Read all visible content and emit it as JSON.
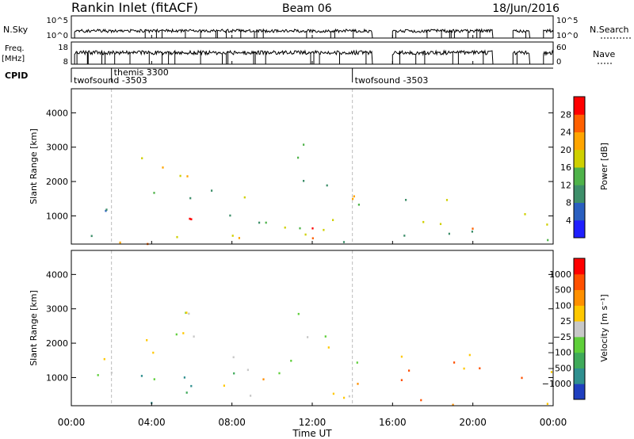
{
  "header": {
    "site": "Rankin Inlet (fitACF)",
    "beam": "Beam 06",
    "date": "18/Jun/2016"
  },
  "top_panels": {
    "nsky_label": "N.Sky",
    "nsky_ticks": [
      "10^5",
      "10^0"
    ],
    "nsearch_label": "N.Search",
    "nsearch_ticks": [
      "10^5",
      "10^0"
    ],
    "freq_label": "Freq.",
    "freq_unit": "[MHz]",
    "freq_ticks": [
      "18",
      "8"
    ],
    "nave_label": "Nave",
    "nave_ticks": [
      "60",
      "0"
    ],
    "cpid_label": "CPID",
    "cpid_entries": [
      {
        "name": "twofsound",
        "id": "-3503",
        "start_hour": 0
      },
      {
        "name": "themis",
        "id": "3300",
        "start_hour": 2
      },
      {
        "name": "twofsound",
        "id": "-3503",
        "start_hour": 14
      }
    ],
    "data_gaps_hours": [
      [
        15.0,
        16.0
      ],
      [
        21.0,
        22.0
      ],
      [
        22.8,
        23.5
      ]
    ]
  },
  "chart_data": [
    {
      "type": "heatmap",
      "name": "power",
      "xlabel": "",
      "ylabel": "Slant Range [km]",
      "xlim": [
        0,
        24
      ],
      "ylim": [
        180,
        4700
      ],
      "yticks": [
        "1000",
        "2000",
        "3000",
        "4000"
      ],
      "colorbar": {
        "label": "Power [dB]",
        "ticks": [
          "4",
          "8",
          "12",
          "16",
          "20",
          "24",
          "28"
        ],
        "colors": [
          "#1f1fff",
          "#2a5fc0",
          "#3e8f6a",
          "#4fb34a",
          "#cfd000",
          "#ffa500",
          "#ff6000",
          "#ff0000"
        ]
      },
      "regions": [
        {
          "t0": 0.4,
          "t1": 2.6,
          "r0": 180,
          "r1": 1600,
          "level": 2
        },
        {
          "t0": 0.8,
          "t1": 2.4,
          "r0": 200,
          "r1": 700,
          "level": 6
        },
        {
          "t0": 2.6,
          "t1": 5.6,
          "r0": 200,
          "r1": 900,
          "level": 5
        },
        {
          "t0": 4.8,
          "t1": 7.0,
          "r0": 500,
          "r1": 1300,
          "level": 7
        },
        {
          "t0": 2.6,
          "t1": 7.2,
          "r0": 1500,
          "r1": 2100,
          "level": 3
        },
        {
          "t0": 2.6,
          "t1": 4.2,
          "r0": 2000,
          "r1": 2800,
          "level": 4
        },
        {
          "t0": 4.5,
          "t1": 7.4,
          "r0": 2000,
          "r1": 3000,
          "level": 5
        },
        {
          "t0": 7.4,
          "t1": 14.8,
          "r0": 180,
          "r1": 1600,
          "level": 3
        },
        {
          "t0": 8.0,
          "t1": 12.6,
          "r0": 180,
          "r1": 700,
          "level": 6
        },
        {
          "t0": 10.5,
          "t1": 12.8,
          "r0": 1600,
          "r1": 3200,
          "level": 2
        },
        {
          "t0": 13.5,
          "t1": 14.9,
          "r0": 180,
          "r1": 1700,
          "level": 4
        },
        {
          "t0": 16.1,
          "t1": 20.8,
          "r0": 180,
          "r1": 1600,
          "level": 3
        },
        {
          "t0": 18.5,
          "t1": 20.0,
          "r0": 200,
          "r1": 800,
          "level": 5
        },
        {
          "t0": 22.0,
          "t1": 22.8,
          "r0": 200,
          "r1": 1600,
          "level": 3
        },
        {
          "t0": 23.3,
          "t1": 24.0,
          "r0": 200,
          "r1": 2400,
          "level": 4
        }
      ],
      "annotation_lines_hours": [
        2,
        14
      ]
    },
    {
      "type": "heatmap",
      "name": "velocity",
      "xlabel": "Time UT",
      "ylabel": "Slant Range [km]",
      "xlim": [
        0,
        24
      ],
      "ylim": [
        180,
        4700
      ],
      "xticks": [
        "00:00",
        "04:00",
        "08:00",
        "12:00",
        "16:00",
        "20:00",
        "00:00"
      ],
      "yticks": [
        "1000",
        "2000",
        "3000",
        "4000"
      ],
      "colorbar": {
        "label": "Velocity [m s⁻¹]",
        "ticks": [
          "1000",
          "500",
          "100",
          "25",
          "−25",
          "−100",
          "−500",
          "−1000"
        ],
        "colors": [
          "#1f3fbf",
          "#2f8f8f",
          "#3faa5a",
          "#5fcf3a",
          "#c8c8c8",
          "#ffc800",
          "#ff9000",
          "#ff5000",
          "#ff0000"
        ]
      },
      "regions": [
        {
          "t0": 0.4,
          "t1": 2.6,
          "r0": 180,
          "r1": 1600,
          "level": 4
        },
        {
          "t0": 2.6,
          "t1": 6.0,
          "r0": 180,
          "r1": 1200,
          "level": 2
        },
        {
          "t0": 4.8,
          "t1": 6.5,
          "r0": 600,
          "r1": 1400,
          "level": 0
        },
        {
          "t0": 2.6,
          "t1": 7.4,
          "r0": 1500,
          "r1": 3000,
          "level": 4
        },
        {
          "t0": 7.4,
          "t1": 14.8,
          "r0": 180,
          "r1": 1000,
          "level": 5
        },
        {
          "t0": 7.4,
          "t1": 14.8,
          "r0": 1000,
          "r1": 1700,
          "level": 3
        },
        {
          "t0": 10.5,
          "t1": 12.8,
          "r0": 1700,
          "r1": 3200,
          "level": 4
        },
        {
          "t0": 16.1,
          "t1": 20.8,
          "r0": 180,
          "r1": 1700,
          "level": 6
        },
        {
          "t0": 18.8,
          "t1": 20.2,
          "r0": 700,
          "r1": 1500,
          "level": 8
        },
        {
          "t0": 22.0,
          "t1": 22.8,
          "r0": 200,
          "r1": 1600,
          "level": 6
        },
        {
          "t0": 23.3,
          "t1": 24.0,
          "r0": 200,
          "r1": 2400,
          "level": 4
        }
      ],
      "annotation_lines_hours": [
        2,
        14
      ]
    }
  ]
}
